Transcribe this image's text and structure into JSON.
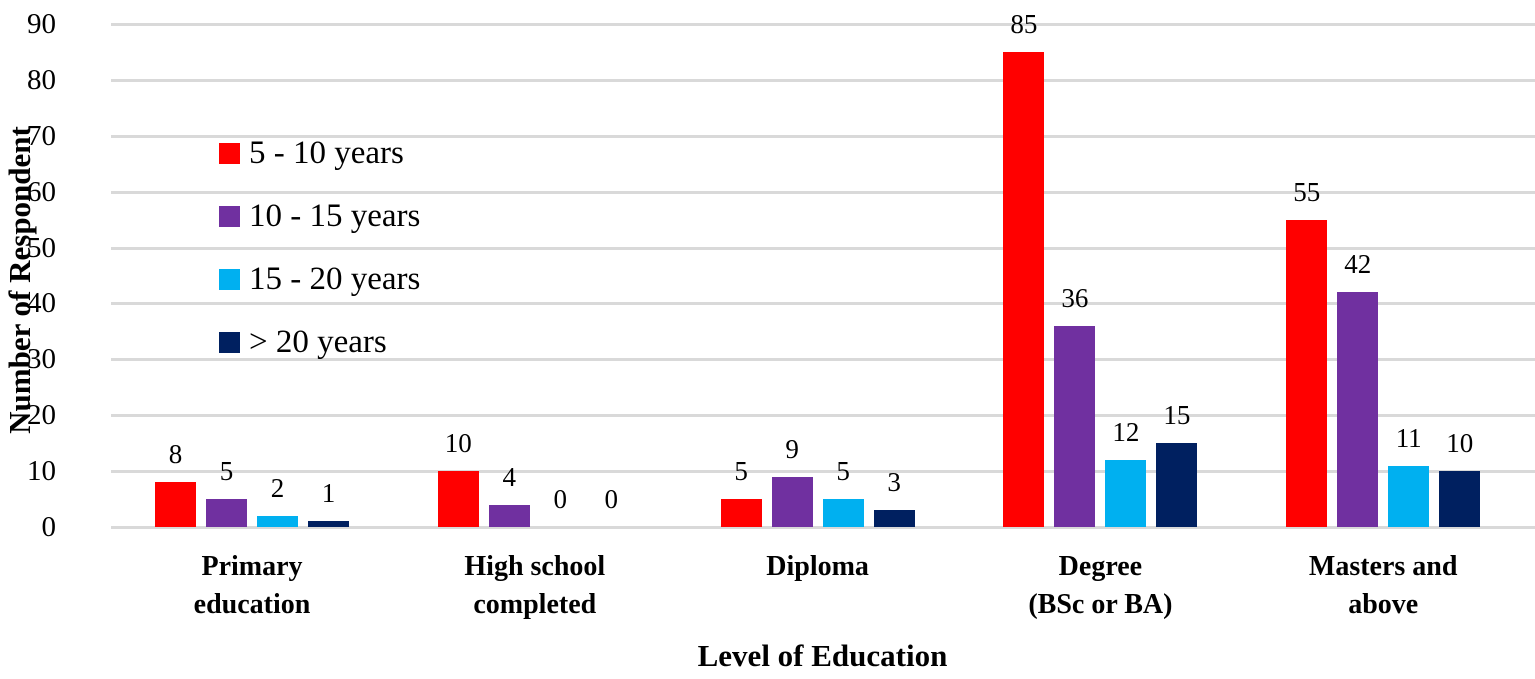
{
  "chart_data": {
    "type": "bar",
    "title": "",
    "xlabel": "Level of Education",
    "ylabel": "Number of Respondent",
    "ylim": [
      0,
      90
    ],
    "yticks": [
      0,
      10,
      20,
      30,
      40,
      50,
      60,
      70,
      80,
      90
    ],
    "grid": true,
    "legend_position": "upper-left inside plot",
    "categories": [
      [
        "Primary",
        "education"
      ],
      [
        "High school",
        "completed"
      ],
      [
        "Diploma"
      ],
      [
        "Degree",
        "(BSc or BA)"
      ],
      [
        "Masters and",
        "above"
      ]
    ],
    "series": [
      {
        "name": "5 - 10 years",
        "color": "#ff0000",
        "values": [
          8,
          10,
          5,
          85,
          55
        ]
      },
      {
        "name": "10 - 15 years",
        "color": "#7030a0",
        "values": [
          5,
          4,
          9,
          36,
          42
        ]
      },
      {
        "name": "15 - 20 years",
        "color": "#00b0f0",
        "values": [
          2,
          0,
          5,
          12,
          11
        ]
      },
      {
        "name": "> 20 years",
        "color": "#002060",
        "values": [
          1,
          0,
          3,
          15,
          10
        ]
      }
    ]
  }
}
